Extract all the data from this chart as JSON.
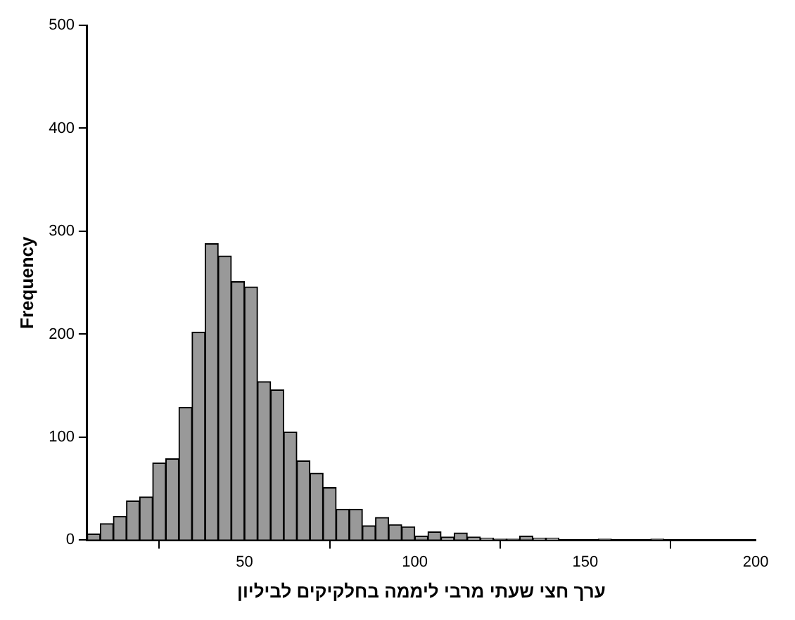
{
  "chart_data": {
    "type": "histogram",
    "xlabel": "ערך חצי שעתי מרבי ליממה בחלקיקים לביליון",
    "ylabel": "Frequency",
    "bins": [
      3.85,
      7.69,
      11.54,
      15.38,
      19.23,
      23.08,
      26.92,
      30.77,
      34.62,
      38.46,
      42.31,
      46.15,
      50,
      53.85,
      57.69,
      61.54,
      65.38,
      69.23,
      73.08,
      76.92,
      80.77,
      84.62,
      88.46,
      92.31,
      96.15,
      100,
      103.85,
      107.69,
      111.54,
      115.38,
      119.23,
      123.08,
      126.92,
      130.77,
      134.62,
      138.46,
      142.31,
      146.15,
      150,
      153.85,
      157.69,
      161.54,
      165.38,
      169.23,
      173.08,
      176.92,
      180.77,
      184.62,
      188.46,
      192.31,
      196.15,
      200
    ],
    "values": [
      6,
      16,
      23,
      38,
      42,
      75,
      79,
      129,
      202,
      288,
      276,
      251,
      246,
      154,
      146,
      105,
      77,
      65,
      51,
      30,
      30,
      14,
      22,
      15,
      13,
      4,
      8,
      3,
      7,
      3,
      2,
      1,
      1,
      4,
      2,
      2,
      0,
      0,
      0,
      1,
      0,
      0,
      0,
      1,
      0,
      0,
      0,
      0,
      0,
      0,
      0
    ],
    "color": "#999999",
    "xlim": [
      3.85,
      200
    ],
    "xticks": [
      50,
      100,
      150,
      200
    ],
    "ylim": [
      0,
      500
    ],
    "yticks": [
      0,
      100,
      200,
      300,
      400,
      500
    ],
    "grid": false,
    "legend": false
  }
}
